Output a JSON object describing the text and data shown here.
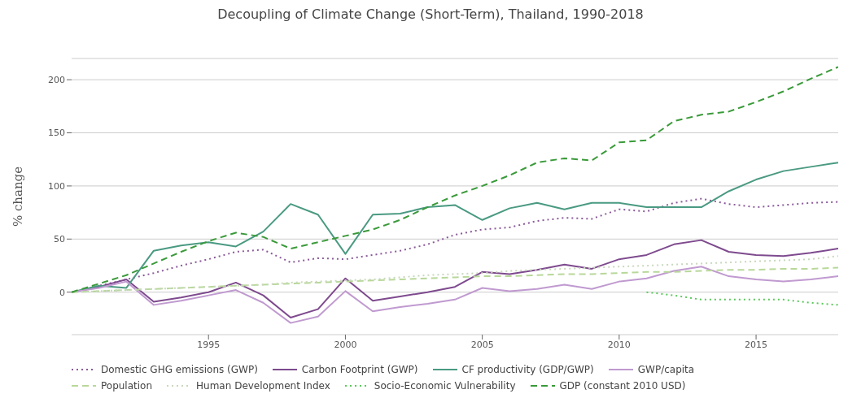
{
  "chart_data": {
    "type": "line",
    "title": "Decoupling of Climate Change (Short-Term), Thailand, 1990-2018",
    "ylabel": "% change",
    "x": [
      1990,
      1991,
      1992,
      1993,
      1994,
      1995,
      1996,
      1997,
      1998,
      1999,
      2000,
      2001,
      2002,
      2003,
      2004,
      2005,
      2006,
      2007,
      2008,
      2009,
      2010,
      2011,
      2012,
      2013,
      2014,
      2015,
      2016,
      2017,
      2018
    ],
    "xlim": [
      1990,
      2018
    ],
    "xticks": [
      1995,
      2000,
      2005,
      2010,
      2015
    ],
    "ylim": [
      -40,
      220
    ],
    "yticks": [
      0,
      50,
      100,
      150,
      200
    ],
    "grid": "y",
    "legend": "bottom",
    "series": [
      {
        "name": "Domestic GHG emissions (GWP)",
        "color": "#8a5a9a",
        "line_style": "dotted",
        "values": [
          0,
          6,
          12,
          18,
          25,
          31,
          38,
          40,
          28,
          32,
          31,
          35,
          39,
          45,
          54,
          59,
          61,
          67,
          70,
          69,
          78,
          76,
          84,
          88,
          83,
          80,
          82,
          84,
          85
        ]
      },
      {
        "name": "Carbon Footprint (GWP)",
        "color": "#7e4a8e",
        "line_style": "solid",
        "values": [
          0,
          5,
          12,
          -9,
          -5,
          0,
          9,
          -3,
          -24,
          -16,
          13,
          -8,
          -4,
          0,
          5,
          19,
          17,
          21,
          26,
          22,
          31,
          35,
          45,
          49,
          38,
          35,
          34,
          37,
          41
        ]
      },
      {
        "name": "CF productivity (GDP/GWP)",
        "color": "#4a9a82",
        "line_style": "solid",
        "values": [
          0,
          6,
          4,
          39,
          44,
          47,
          43,
          57,
          83,
          73,
          36,
          73,
          74,
          80,
          82,
          68,
          79,
          84,
          78,
          84,
          84,
          80,
          80,
          80,
          95,
          106,
          114,
          118,
          122
        ]
      },
      {
        "name": "GWP/capita",
        "color": "#c09ad0",
        "line_style": "solid",
        "values": [
          0,
          4,
          10,
          -12,
          -8,
          -3,
          2,
          -10,
          -29,
          -23,
          1,
          -18,
          -14,
          -11,
          -7,
          4,
          1,
          3,
          7,
          3,
          10,
          13,
          20,
          24,
          15,
          12,
          10,
          12,
          15
        ]
      },
      {
        "name": "Population",
        "color": "#b8d89a",
        "line_style": "dashed",
        "values": [
          0,
          1,
          2,
          3,
          4,
          5,
          6,
          7,
          8,
          9,
          10,
          11,
          12,
          13,
          14,
          15,
          15,
          16,
          17,
          17,
          18,
          19,
          19,
          20,
          21,
          21,
          22,
          22,
          23
        ]
      },
      {
        "name": "Human Development Index",
        "color": "#c8d8bc",
        "line_style": "dotted",
        "values": [
          0,
          1,
          2,
          3,
          4,
          5,
          6,
          7,
          9,
          10,
          11,
          12,
          14,
          16,
          17,
          18,
          20,
          21,
          22,
          23,
          24,
          25,
          26,
          27,
          28,
          29,
          30,
          31,
          34
        ]
      },
      {
        "name": "Socio-Economic Vulnerability",
        "color": "#5ac85a",
        "line_style": "dotted",
        "values": [
          null,
          null,
          null,
          null,
          null,
          null,
          null,
          null,
          null,
          null,
          null,
          null,
          null,
          null,
          null,
          null,
          null,
          null,
          null,
          null,
          null,
          0,
          -3,
          -7,
          -7,
          -7,
          -7,
          -10,
          -12
        ]
      },
      {
        "name": "GDP (constant 2010 USD)",
        "color": "#3a9a3a",
        "line_style": "dashed",
        "values": [
          0,
          8,
          16,
          27,
          38,
          48,
          56,
          52,
          41,
          47,
          53,
          59,
          68,
          80,
          91,
          100,
          110,
          122,
          126,
          124,
          141,
          143,
          161,
          167,
          170,
          179,
          189,
          201,
          212
        ]
      }
    ]
  }
}
